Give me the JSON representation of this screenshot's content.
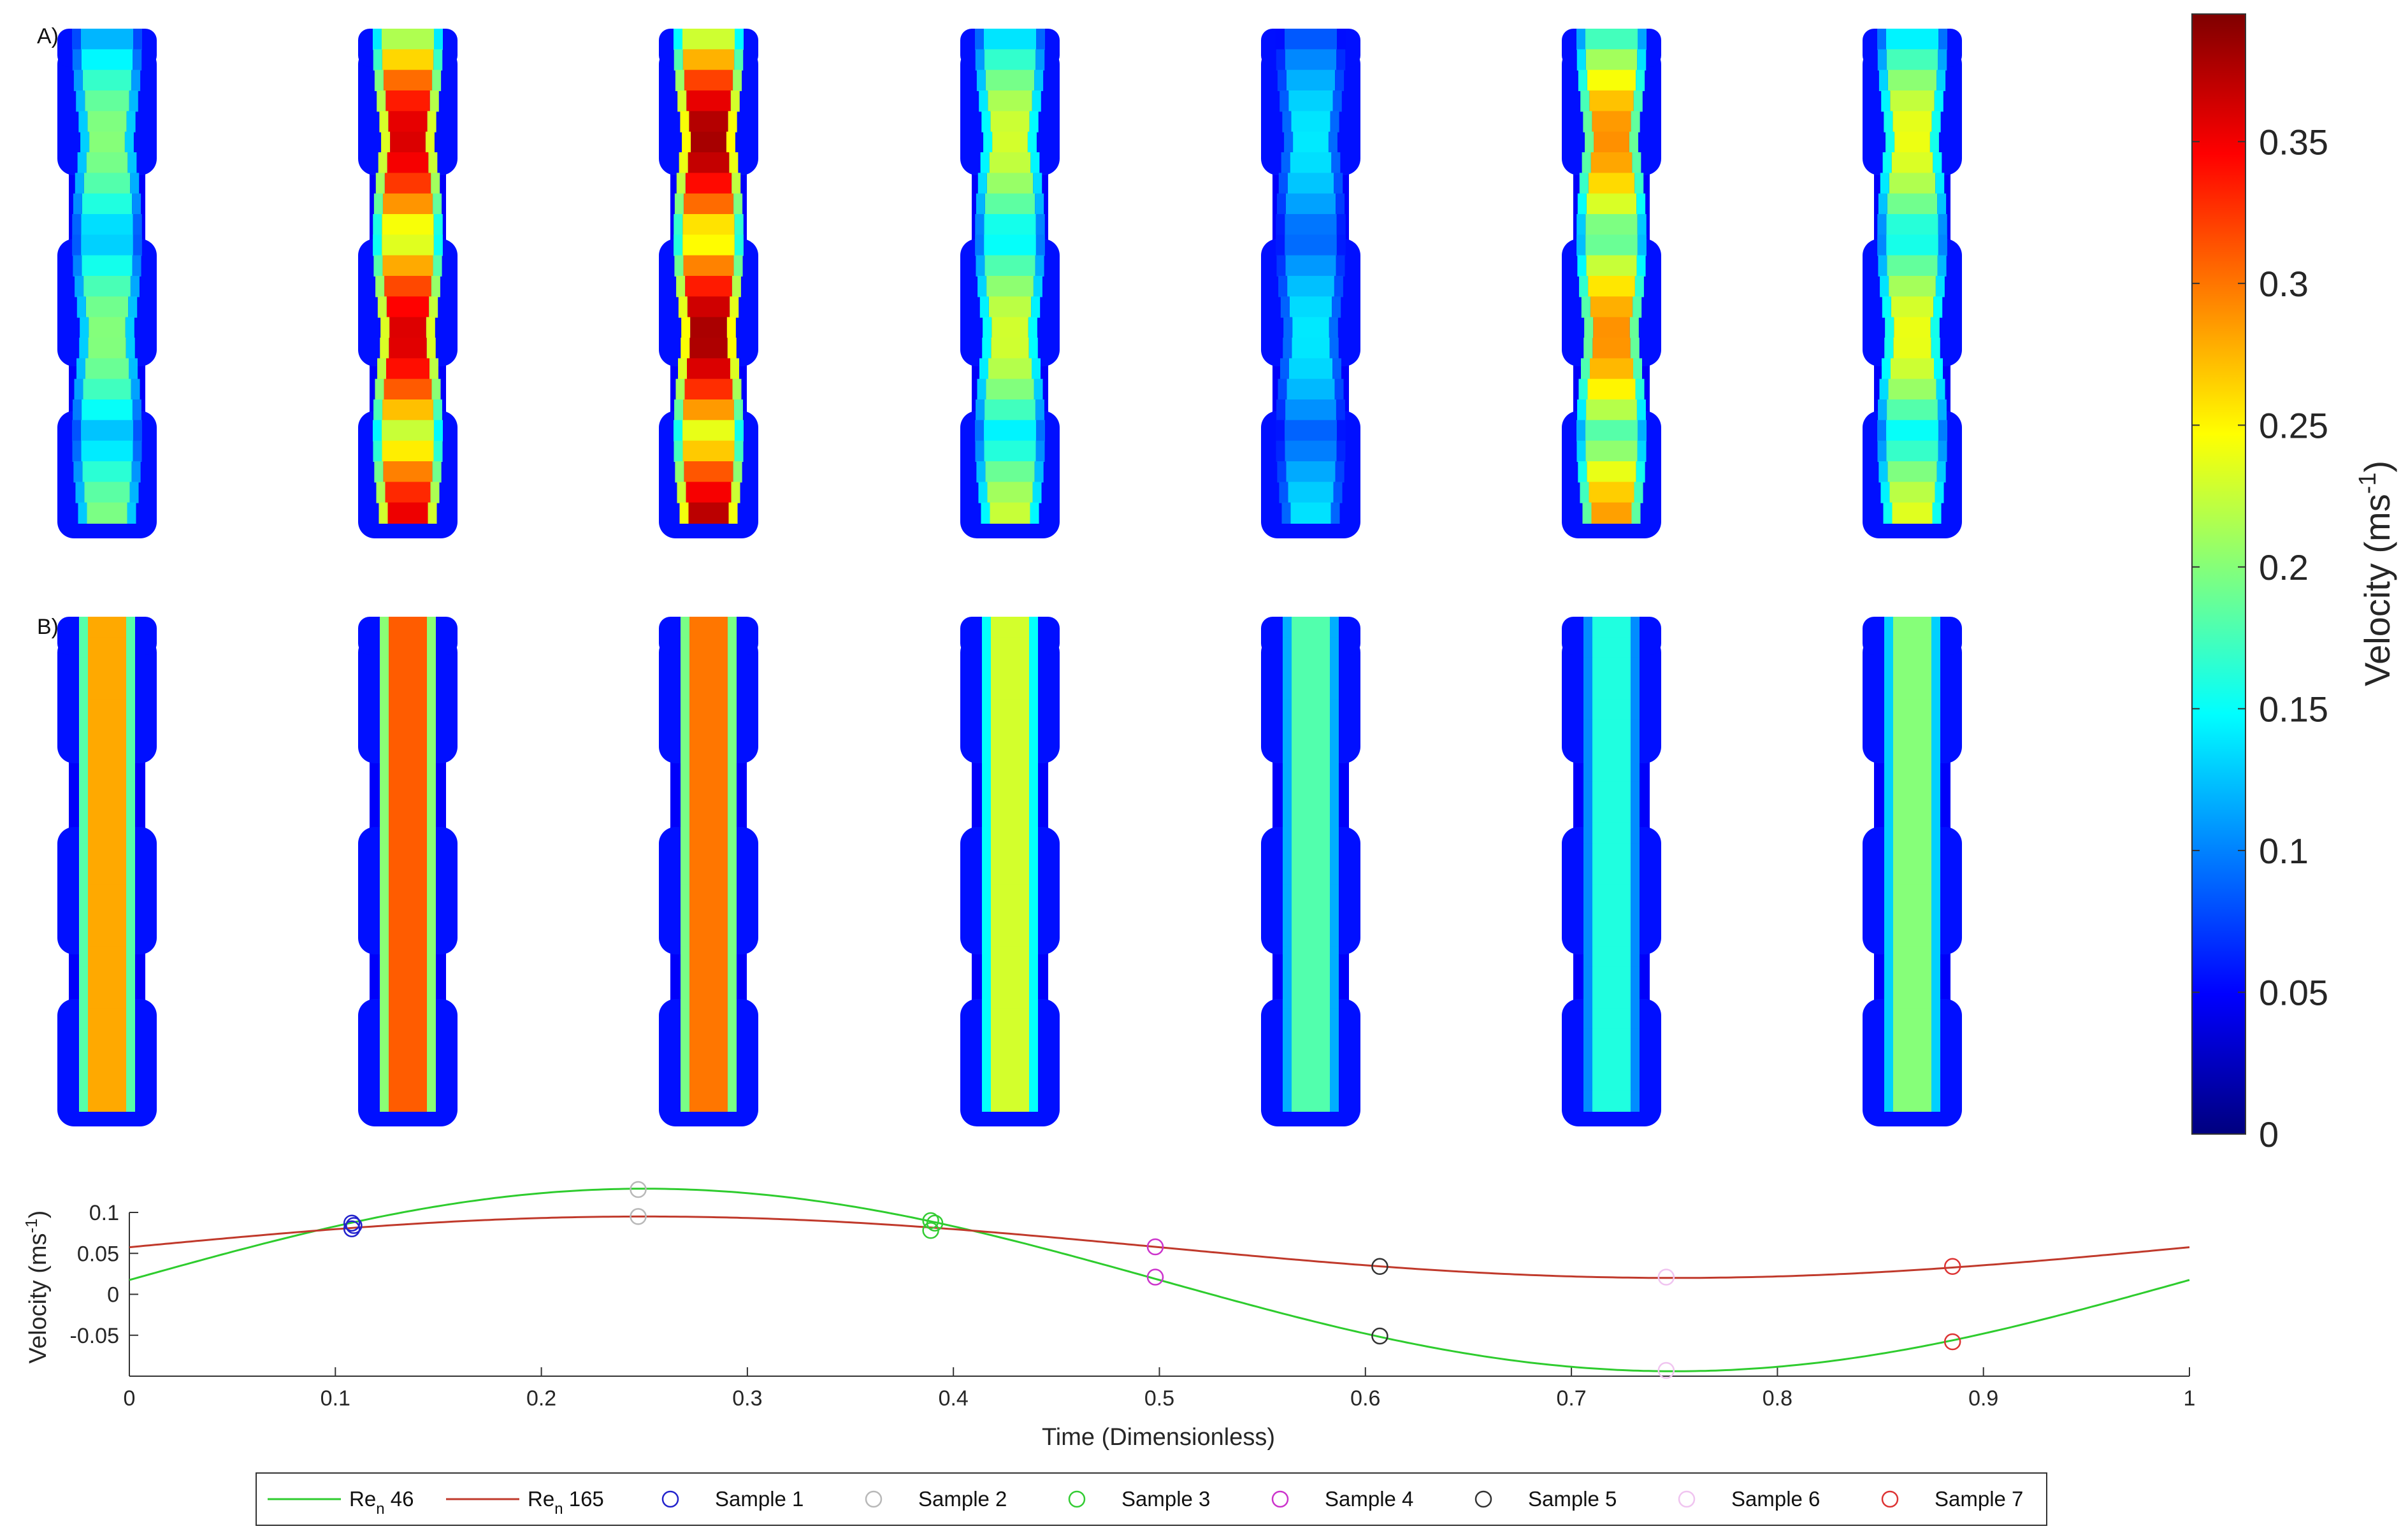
{
  "panels": {
    "a_label": "A)",
    "b_label": "B)",
    "a_peak_velocity": [
      0.2,
      0.36,
      0.38,
      0.23,
      0.14,
      0.29,
      0.24
    ],
    "b_core_velocity": [
      0.28,
      0.31,
      0.3,
      0.23,
      0.18,
      0.16,
      0.2
    ]
  },
  "colorbar": {
    "title": "Velocity (ms",
    "title_sup": "-1",
    "title_close": ")",
    "min": 0,
    "max": 0.395,
    "ticks": [
      {
        "value": 0,
        "label": "0"
      },
      {
        "value": 0.05,
        "label": "0.05"
      },
      {
        "value": 0.1,
        "label": "0.1"
      },
      {
        "value": 0.15,
        "label": "0.15"
      },
      {
        "value": 0.2,
        "label": "0.2"
      },
      {
        "value": 0.25,
        "label": "0.25"
      },
      {
        "value": 0.3,
        "label": "0.3"
      },
      {
        "value": 0.35,
        "label": "0.35"
      }
    ],
    "colors": [
      "#00007f",
      "#0000ff",
      "#007fff",
      "#00ffff",
      "#7fff7f",
      "#ffff00",
      "#ff7f00",
      "#ff0000",
      "#7f0000"
    ]
  },
  "chart_data": {
    "type": "line",
    "xlabel": "Time (Dimensionless)",
    "ylabel": "Velocity (ms",
    "ylabel_sup": "-1",
    "ylabel_close": ")",
    "xlim": [
      0,
      1
    ],
    "ylim": [
      -0.1,
      0.1
    ],
    "xticks": [
      {
        "value": 0,
        "label": "0"
      },
      {
        "value": 0.1,
        "label": "0.1"
      },
      {
        "value": 0.2,
        "label": "0.2"
      },
      {
        "value": 0.3,
        "label": "0.3"
      },
      {
        "value": 0.4,
        "label": "0.4"
      },
      {
        "value": 0.5,
        "label": "0.5"
      },
      {
        "value": 0.6,
        "label": "0.6"
      },
      {
        "value": 0.7,
        "label": "0.7"
      },
      {
        "value": 0.8,
        "label": "0.8"
      },
      {
        "value": 0.9,
        "label": "0.9"
      },
      {
        "value": 1,
        "label": "1"
      }
    ],
    "yticks": [
      {
        "value": -0.05,
        "label": "-0.05"
      },
      {
        "value": 0,
        "label": "0"
      },
      {
        "value": 0.05,
        "label": "0.05"
      },
      {
        "value": 0.1,
        "label": "0.1"
      }
    ],
    "series": [
      {
        "name": "Re",
        "subscript": "n",
        "suffix": " 46",
        "color": "#2ecc2e",
        "mean": 0.0175,
        "amplitude": 0.1115,
        "period": 1,
        "phase": 0.25
      },
      {
        "name": "Re",
        "subscript": "n",
        "suffix": " 165",
        "color": "#c0392b",
        "mean": 0.0575,
        "amplitude": 0.0375,
        "period": 1,
        "phase": 0.25
      }
    ],
    "samples": [
      {
        "name": "Sample 1",
        "color": "#2222cc",
        "points": [
          {
            "x": 0.108,
            "y": 0.087
          },
          {
            "x": 0.108,
            "y": 0.08
          },
          {
            "x": 0.109,
            "y": 0.084
          }
        ]
      },
      {
        "name": "Sample 2",
        "color": "#b8b8b8",
        "points": [
          {
            "x": 0.247,
            "y": 0.128
          },
          {
            "x": 0.247,
            "y": 0.095
          }
        ]
      },
      {
        "name": "Sample 3",
        "color": "#33cc33",
        "points": [
          {
            "x": 0.389,
            "y": 0.09
          },
          {
            "x": 0.389,
            "y": 0.078
          },
          {
            "x": 0.391,
            "y": 0.087
          }
        ]
      },
      {
        "name": "Sample 4",
        "color": "#cc33cc",
        "points": [
          {
            "x": 0.498,
            "y": 0.058
          },
          {
            "x": 0.498,
            "y": 0.021
          }
        ]
      },
      {
        "name": "Sample 5",
        "color": "#333333",
        "points": [
          {
            "x": 0.607,
            "y": 0.034
          },
          {
            "x": 0.607,
            "y": -0.051
          }
        ]
      },
      {
        "name": "Sample 6",
        "color": "#f0c4f0",
        "points": [
          {
            "x": 0.746,
            "y": 0.021
          },
          {
            "x": 0.746,
            "y": -0.093
          }
        ]
      },
      {
        "name": "Sample 7",
        "color": "#dd3333",
        "points": [
          {
            "x": 0.885,
            "y": 0.034
          },
          {
            "x": 0.885,
            "y": -0.058
          }
        ]
      }
    ]
  }
}
